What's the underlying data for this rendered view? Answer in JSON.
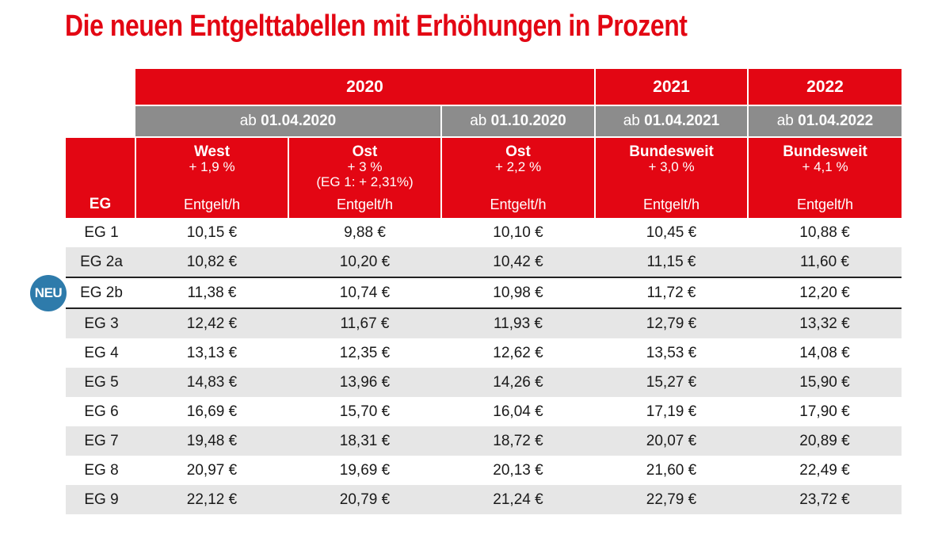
{
  "title": "Die neuen Entgelttabellen mit Erhöhungen in Prozent",
  "years": {
    "y2020": "2020",
    "y2021": "2021",
    "y2022": "2022"
  },
  "dates": [
    {
      "prefix": "ab",
      "date": "01.04.2020"
    },
    {
      "prefix": "ab",
      "date": "01.10.2020"
    },
    {
      "prefix": "ab",
      "date": "01.04.2021"
    },
    {
      "prefix": "ab",
      "date": "01.04.2022"
    }
  ],
  "eg_header": "EG",
  "columns": [
    {
      "name": "West",
      "pct": "+ 1,9 %",
      "note": "",
      "unit": "Entgelt/h"
    },
    {
      "name": "Ost",
      "pct": "+ 3 %",
      "note": "(EG 1: + 2,31%)",
      "unit": "Entgelt/h"
    },
    {
      "name": "Ost",
      "pct": "+ 2,2 %",
      "note": "",
      "unit": "Entgelt/h"
    },
    {
      "name": "Bundesweit",
      "pct": "+ 3,0 %",
      "note": "",
      "unit": "Entgelt/h"
    },
    {
      "name": "Bundesweit",
      "pct": "+ 4,1 %",
      "note": "",
      "unit": "Entgelt/h"
    }
  ],
  "rows": [
    {
      "eg": "EG 1",
      "values": [
        "10,15 €",
        "9,88 €",
        "10,10 €",
        "10,45 €",
        "10,88 €"
      ]
    },
    {
      "eg": "EG 2a",
      "values": [
        "10,82 €",
        "10,20 €",
        "10,42 €",
        "11,15 €",
        "11,60 €"
      ]
    },
    {
      "eg": "EG 2b",
      "values": [
        "11,38 €",
        "10,74 €",
        "10,98 €",
        "11,72 €",
        "12,20 €"
      ]
    },
    {
      "eg": "EG 3",
      "values": [
        "12,42 €",
        "11,67 €",
        "11,93 €",
        "12,79 €",
        "13,32 €"
      ]
    },
    {
      "eg": "EG 4",
      "values": [
        "13,13 €",
        "12,35 €",
        "12,62 €",
        "13,53 €",
        "14,08 €"
      ]
    },
    {
      "eg": "EG 5",
      "values": [
        "14,83 €",
        "13,96 €",
        "14,26 €",
        "15,27 €",
        "15,90 €"
      ]
    },
    {
      "eg": "EG 6",
      "values": [
        "16,69 €",
        "15,70 €",
        "16,04 €",
        "17,19 €",
        "17,90 €"
      ]
    },
    {
      "eg": "EG 7",
      "values": [
        "19,48 €",
        "18,31 €",
        "18,72 €",
        "20,07 €",
        "20,89 €"
      ]
    },
    {
      "eg": "EG 8",
      "values": [
        "20,97 €",
        "19,69 €",
        "20,13 €",
        "21,60 €",
        "22,49 €"
      ]
    },
    {
      "eg": "EG 9",
      "values": [
        "22,12 €",
        "20,79 €",
        "21,24 €",
        "22,79 €",
        "23,72 €"
      ]
    }
  ],
  "badge": "NEU",
  "colors": {
    "red": "#e30613",
    "grey": "#8c8c8c",
    "stripe": "#e6e6e6",
    "badge": "#2e7bab"
  }
}
